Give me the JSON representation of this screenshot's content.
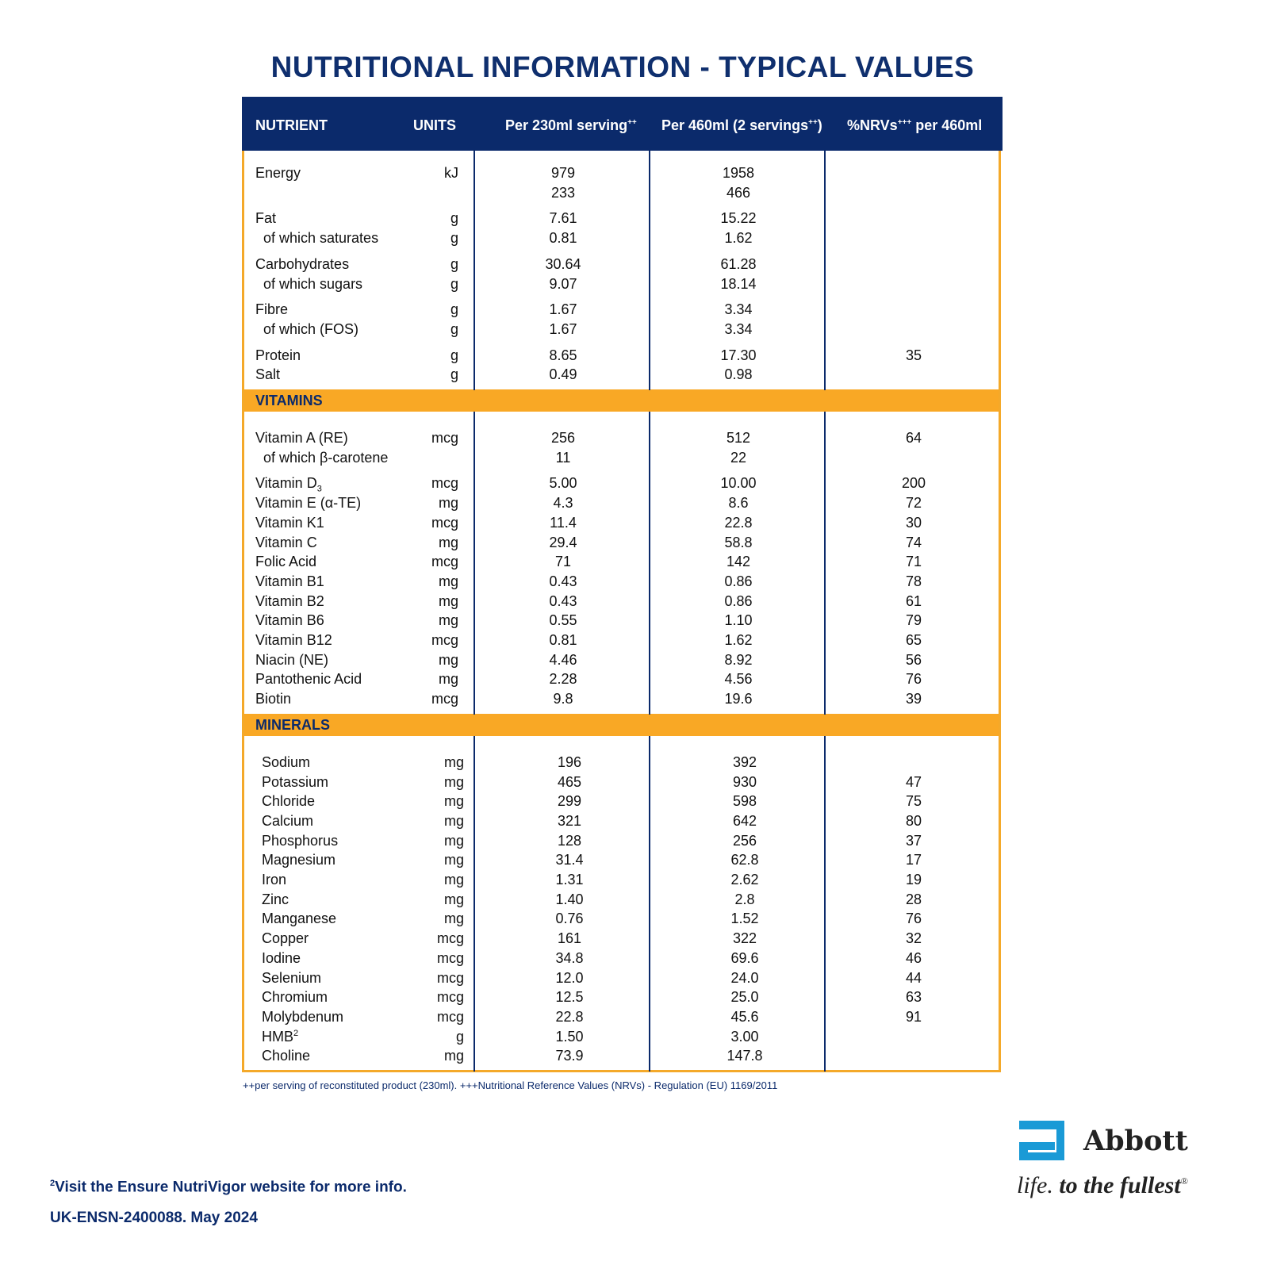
{
  "title": "NUTRITIONAL INFORMATION - TYPICAL VALUES",
  "header": {
    "nutrient": "NUTRIENT",
    "units": "UNITS",
    "col1": "Per 230ml serving",
    "col1_sup": "++",
    "col2": "Per 460ml (2 servings",
    "col2_sup": "++",
    "col2_end": ")",
    "col3": "%NRVs",
    "col3_sup": "+++",
    "col3_end": " per 460ml"
  },
  "sections": [
    {
      "label": "",
      "rows": [
        {
          "name": "Energy",
          "unit": "kJ",
          "v1": "979",
          "v2": "1958",
          "v3": ""
        },
        {
          "name": "",
          "unit": "",
          "v1": "233",
          "v2": "466",
          "v3": ""
        },
        {
          "name": "Fat",
          "unit": "g",
          "v1": "7.61",
          "v2": "15.22",
          "v3": "",
          "gap": true
        },
        {
          "name": "of which saturates",
          "unit": "g",
          "v1": "0.81",
          "v2": "1.62",
          "v3": "",
          "sub": true
        },
        {
          "name": "Carbohydrates",
          "unit": "g",
          "v1": "30.64",
          "v2": "61.28",
          "v3": "",
          "gap": true
        },
        {
          "name": "of which sugars",
          "unit": "g",
          "v1": "9.07",
          "v2": "18.14",
          "v3": "",
          "sub": true
        },
        {
          "name": "Fibre",
          "unit": "g",
          "v1": "1.67",
          "v2": "3.34",
          "v3": "",
          "gap": true
        },
        {
          "name": "of which (FOS)",
          "unit": "g",
          "v1": "1.67",
          "v2": "3.34",
          "v3": "",
          "sub": true
        },
        {
          "name": "Protein",
          "unit": "g",
          "v1": "8.65",
          "v2": "17.30",
          "v3": "35",
          "gap": true
        },
        {
          "name": "Salt",
          "unit": "g",
          "v1": "0.49",
          "v2": "0.98",
          "v3": ""
        }
      ]
    },
    {
      "label": "VITAMINS",
      "rows": [
        {
          "name": "Vitamin A (RE)",
          "unit": "mcg",
          "v1": "256",
          "v2": "512",
          "v3": "64"
        },
        {
          "name": "of which β-carotene",
          "unit": "",
          "v1": "11",
          "v2": "22",
          "v3": "",
          "sub": true
        },
        {
          "name": "Vitamin D",
          "subscript": "3",
          "unit": "mcg",
          "v1": "5.00",
          "v2": "10.00",
          "v3": "200",
          "gap": true
        },
        {
          "name": "Vitamin E (α-TE)",
          "unit": "mg",
          "v1": "4.3",
          "v2": "8.6",
          "v3": "72"
        },
        {
          "name": "Vitamin K1",
          "unit": "mcg",
          "v1": "11.4",
          "v2": "22.8",
          "v3": "30"
        },
        {
          "name": "Vitamin C",
          "unit": "mg",
          "v1": "29.4",
          "v2": "58.8",
          "v3": "74"
        },
        {
          "name": "Folic Acid",
          "unit": "mcg",
          "v1": "71",
          "v2": "142",
          "v3": "71"
        },
        {
          "name": "Vitamin B1",
          "unit": "mg",
          "v1": "0.43",
          "v2": "0.86",
          "v3": "78"
        },
        {
          "name": "Vitamin B2",
          "unit": "mg",
          "v1": "0.43",
          "v2": "0.86",
          "v3": "61"
        },
        {
          "name": "Vitamin B6",
          "unit": "mg",
          "v1": "0.55",
          "v2": "1.10",
          "v3": "79"
        },
        {
          "name": "Vitamin B12",
          "unit": "mcg",
          "v1": "0.81",
          "v2": "1.62",
          "v3": "65"
        },
        {
          "name": "Niacin (NE)",
          "unit": "mg",
          "v1": "4.46",
          "v2": "8.92",
          "v3": "56"
        },
        {
          "name": "Pantothenic Acid",
          "unit": "mg",
          "v1": "2.28",
          "v2": "4.56",
          "v3": "76"
        },
        {
          "name": "Biotin",
          "unit": "mcg",
          "v1": "9.8",
          "v2": "19.6",
          "v3": "39"
        }
      ]
    },
    {
      "label": "MINERALS",
      "rows": [
        {
          "name": "Sodium",
          "unit": "mg",
          "v1": "196",
          "v2": "392",
          "v3": ""
        },
        {
          "name": "Potassium",
          "unit": "mg",
          "v1": "465",
          "v2": "930",
          "v3": "47"
        },
        {
          "name": "Chloride",
          "unit": "mg",
          "v1": "299",
          "v2": "598",
          "v3": "75"
        },
        {
          "name": "Calcium",
          "unit": "mg",
          "v1": "321",
          "v2": "642",
          "v3": "80"
        },
        {
          "name": "Phosphorus",
          "unit": "mg",
          "v1": "128",
          "v2": "256",
          "v3": "37"
        },
        {
          "name": "Magnesium",
          "unit": "mg",
          "v1": "31.4",
          "v2": "62.8",
          "v3": "17"
        },
        {
          "name": "Iron",
          "unit": "mg",
          "v1": "1.31",
          "v2": "2.62",
          "v3": "19"
        },
        {
          "name": "Zinc",
          "unit": "mg",
          "v1": "1.40",
          "v2": "2.8",
          "v3": "28"
        },
        {
          "name": "Manganese",
          "unit": "mg",
          "v1": "0.76",
          "v2": "1.52",
          "v3": "76"
        },
        {
          "name": "Copper",
          "unit": "mcg",
          "v1": "161",
          "v2": "322",
          "v3": "32"
        },
        {
          "name": "Iodine",
          "unit": "mcg",
          "v1": "34.8",
          "v2": "69.6",
          "v3": "46"
        },
        {
          "name": "Selenium",
          "unit": "mcg",
          "v1": "12.0",
          "v2": "24.0",
          "v3": "44"
        },
        {
          "name": "Chromium",
          "unit": "mcg",
          "v1": "12.5",
          "v2": "25.0",
          "v3": "63"
        },
        {
          "name": "Molybdenum",
          "unit": "mcg",
          "v1": "22.8",
          "v2": "45.6",
          "v3": "91"
        },
        {
          "name": "HMB",
          "superscript": "2",
          "unit": "g",
          "v1": "1.50",
          "v2": "3.00",
          "v3": ""
        },
        {
          "name": "Choline",
          "unit": "mg",
          "v1": "73.9",
          "v2": "147.8",
          "v3": ""
        }
      ]
    }
  ],
  "footnote": "++per serving of reconstituted product (230ml). +++Nutritional Reference Values (NRVs) - Regulation (EU) 1169/2011",
  "note_sup": "2",
  "note": "Visit the Ensure NutriVigor website for more info.",
  "code": "UK-ENSN-2400088. May 2024",
  "brand": {
    "name": "Abbott",
    "tagline_a": "life.",
    "tagline_b": " to the fullest",
    "reg": "®",
    "logo_color": "#1a9ad6"
  },
  "colors": {
    "navy": "#0b2a6b",
    "orange": "#f9a825"
  }
}
